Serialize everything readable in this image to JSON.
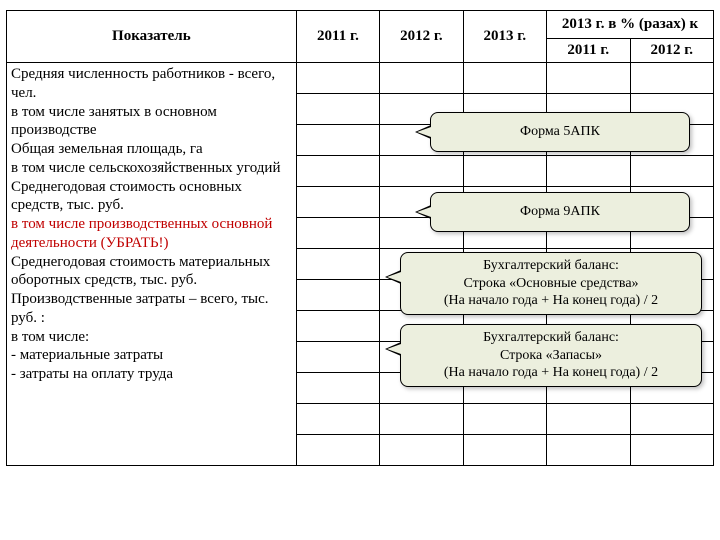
{
  "header": {
    "indicator": "Показатель",
    "y2011": "2011 г.",
    "y2012": "2012 г.",
    "y2013": "2013 г.",
    "pct_top": "2013 г. в % (разах) к",
    "pct_2011": "2011 г.",
    "pct_2012": "2012 г."
  },
  "rows": [
    {
      "text": "Средняя численность работников - всего, чел."
    },
    {
      "text": "в том числе занятых в основном производстве"
    },
    {
      "text": "Общая земельная площадь, га"
    },
    {
      "text": "в том числе сельскохозяйственных угодий"
    },
    {
      "text": "Среднегодовая стоимость основных средств, тыс. руб."
    },
    {
      "text": "в том числе производственных основной деятельности (УБРАТЬ!)",
      "red": true
    },
    {
      "text": "Среднегодовая стоимость материальных оборотных средств, тыс. руб."
    },
    {
      "text": "Производственные затраты – всего, тыс. руб. :"
    },
    {
      "text": "в том числе:"
    },
    {
      "text": " - материальные затраты"
    },
    {
      "text": " - затраты на оплату труда"
    }
  ],
  "callouts": {
    "c1": "Форма 5АПК",
    "c2": "Форма 9АПК",
    "c3_l1": "Бухгалтерский баланс:",
    "c3_l2": "Строка «Основные средства»",
    "c3_l3": "(На начало года + На конец года) / 2",
    "c4_l1": "Бухгалтерский баланс:",
    "c4_l2": "Строка «Запасы»",
    "c4_l3": "(На начало года + На конец года) / 2"
  },
  "style": {
    "callout_bg": "#ecefde",
    "callout_border": "#000000",
    "red_color": "#c00000",
    "font_family": "Georgia, Times New Roman, serif",
    "body_bg": "#ffffff"
  }
}
